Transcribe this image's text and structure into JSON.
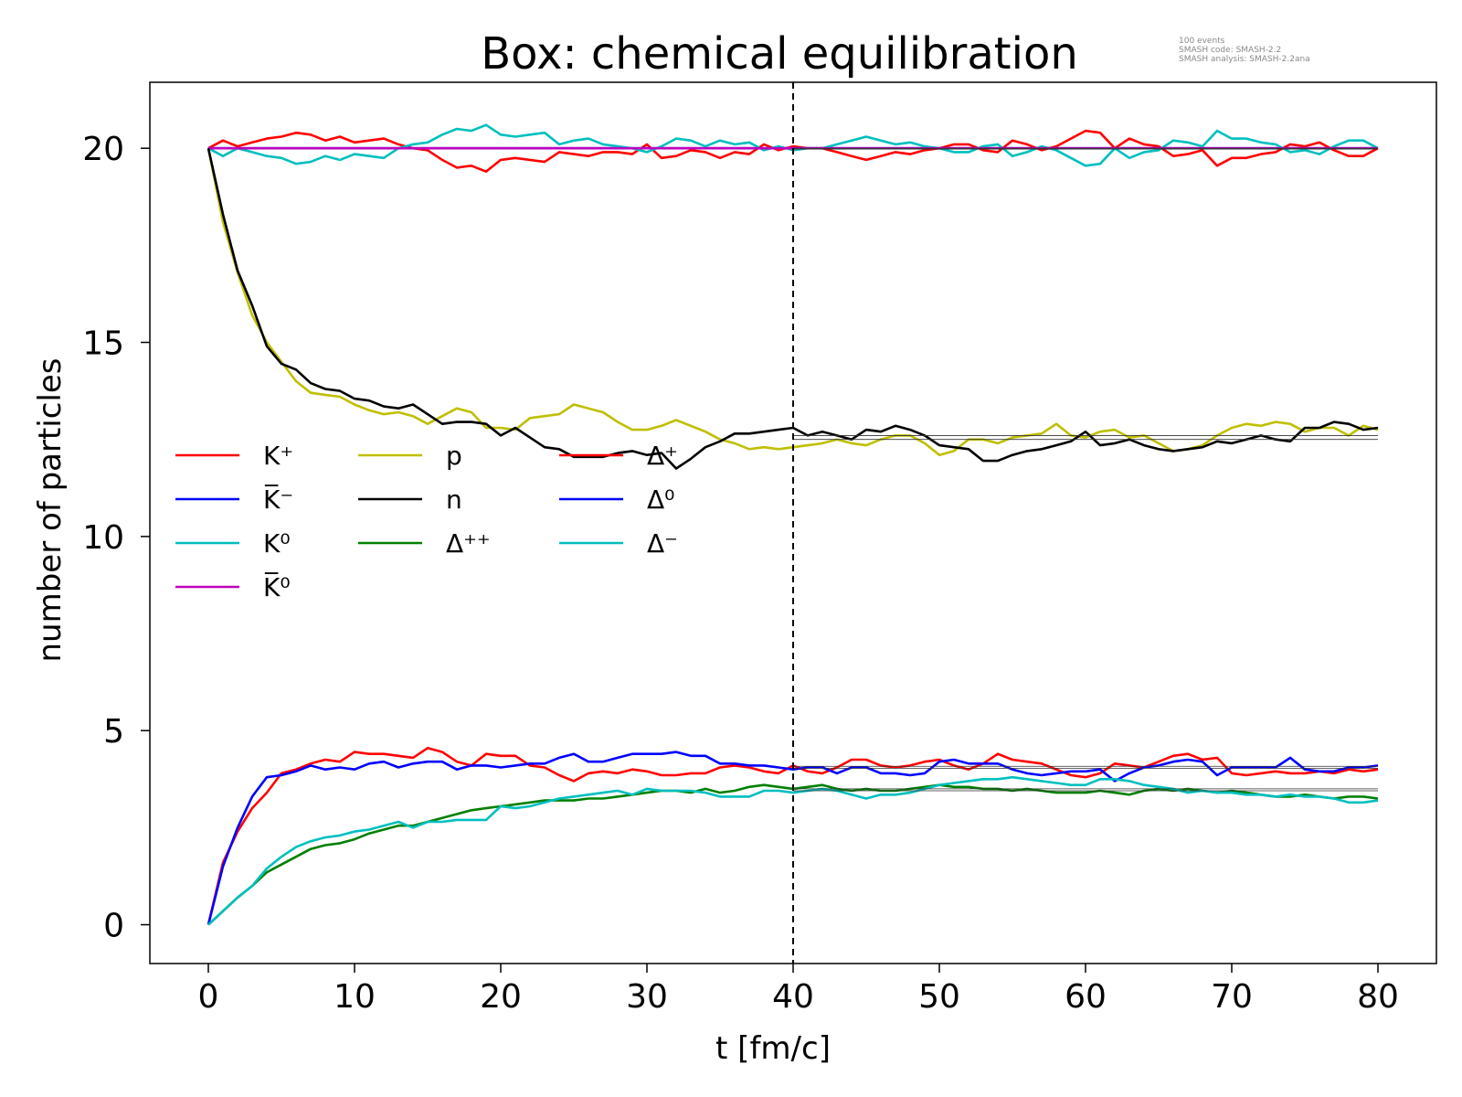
{
  "chart_data": {
    "type": "line",
    "title": "Box: chemical equilibration",
    "xlabel": "t [fm/c]",
    "ylabel": "number of particles",
    "xlim": [
      -4,
      84
    ],
    "ylim": [
      -1,
      21.7
    ],
    "xticks": [
      0,
      10,
      20,
      30,
      40,
      50,
      60,
      70,
      80
    ],
    "yticks": [
      0,
      5,
      10,
      15,
      20
    ],
    "grid": false,
    "legend_position": "center-left",
    "info": [
      "100 events",
      "SMASH code:      SMASH-2.2",
      "SMASH analysis: SMASH-2.2ana"
    ],
    "vline": {
      "x": 40,
      "style": "dashed",
      "color": "#000000"
    },
    "x_start": 0,
    "x_step": 1,
    "series": [
      {
        "name": "K⁺",
        "color": "#ff0000",
        "values": [
          20,
          20.2,
          20.05,
          20.15,
          20.25,
          20.3,
          20.4,
          20.35,
          20.2,
          20.3,
          20.15,
          20.2,
          20.25,
          20.1,
          20.0,
          19.95,
          19.7,
          19.5,
          19.55,
          19.4,
          19.7,
          19.75,
          19.7,
          19.65,
          19.9,
          19.85,
          19.8,
          19.9,
          19.9,
          19.85,
          20.1,
          19.75,
          19.8,
          19.95,
          19.9,
          19.75,
          19.9,
          19.85,
          20.1,
          19.95,
          20.05,
          20.0,
          20.0,
          19.9,
          19.8,
          19.7,
          19.8,
          19.9,
          19.85,
          19.95,
          20.0,
          20.1,
          20.1,
          19.95,
          19.9,
          20.2,
          20.1,
          19.95,
          20.05,
          20.25,
          20.45,
          20.4,
          20.0,
          20.25,
          20.1,
          20.05,
          19.8,
          19.85,
          19.95,
          19.55,
          19.75,
          19.75,
          19.85,
          19.9,
          20.1,
          20.05,
          20.15,
          19.95,
          19.8,
          19.8,
          20.0
        ]
      },
      {
        "name": "K̅⁻",
        "color": "#0000ff",
        "values": [
          20,
          20,
          20,
          20,
          20,
          20,
          20,
          20,
          20,
          20,
          20,
          20,
          20,
          20,
          20,
          20,
          20,
          20,
          20,
          20,
          20,
          20,
          20,
          20,
          20,
          20,
          20,
          20,
          20,
          20,
          20,
          20,
          20,
          20,
          20,
          20,
          20,
          20,
          20,
          20,
          20,
          20,
          20,
          20,
          20,
          20,
          20,
          20,
          20,
          20,
          20,
          20,
          20,
          20,
          20,
          20,
          20,
          20,
          20,
          20,
          20,
          20,
          20,
          20,
          20,
          20,
          20,
          20,
          20,
          20,
          20,
          20,
          20,
          20,
          20,
          20,
          20,
          20,
          20,
          20,
          20
        ]
      },
      {
        "name": "K⁰",
        "color": "#00bfbf",
        "values": [
          20,
          19.8,
          20.0,
          19.9,
          19.8,
          19.75,
          19.6,
          19.65,
          19.8,
          19.7,
          19.85,
          19.8,
          19.75,
          20.0,
          20.1,
          20.15,
          20.35,
          20.5,
          20.45,
          20.6,
          20.35,
          20.3,
          20.35,
          20.4,
          20.1,
          20.2,
          20.25,
          20.1,
          20.05,
          20.0,
          19.9,
          20.05,
          20.25,
          20.2,
          20.05,
          20.2,
          20.1,
          20.15,
          19.95,
          20.05,
          19.95,
          20.0,
          20.0,
          20.1,
          20.2,
          20.3,
          20.2,
          20.1,
          20.15,
          20.05,
          20.0,
          19.9,
          19.9,
          20.05,
          20.1,
          19.8,
          19.9,
          20.05,
          19.95,
          19.75,
          19.55,
          19.6,
          20.0,
          19.75,
          19.9,
          19.95,
          20.2,
          20.15,
          20.05,
          20.45,
          20.25,
          20.25,
          20.15,
          20.1,
          19.9,
          19.95,
          19.85,
          20.05,
          20.2,
          20.2,
          20.0
        ]
      },
      {
        "name": "K̅⁰",
        "color": "#bf00bf",
        "values": [
          20,
          20,
          20,
          20,
          20,
          20,
          20,
          20,
          20,
          20,
          20,
          20,
          20,
          20,
          20,
          20,
          20,
          20,
          20,
          20,
          20,
          20,
          20,
          20,
          20,
          20,
          20,
          20,
          20,
          20,
          20,
          20,
          20,
          20,
          20,
          20,
          20,
          20,
          20,
          20,
          20,
          20,
          20,
          20,
          20,
          20,
          20,
          20,
          20,
          20,
          20,
          20,
          20,
          20,
          20,
          20,
          20,
          20,
          20,
          20,
          20,
          20,
          20,
          20,
          20,
          20,
          20,
          20,
          20,
          20,
          20,
          20,
          20,
          20,
          20,
          20,
          20,
          20,
          20,
          20,
          20
        ]
      },
      {
        "name": "p",
        "color": "#bfbf00",
        "values": [
          20,
          18.1,
          16.8,
          15.7,
          15.0,
          14.5,
          14.0,
          13.7,
          13.65,
          13.6,
          13.4,
          13.25,
          13.15,
          13.2,
          13.1,
          12.9,
          13.1,
          13.3,
          13.2,
          12.8,
          12.8,
          12.75,
          13.05,
          13.1,
          13.15,
          13.4,
          13.3,
          13.2,
          12.95,
          12.75,
          12.75,
          12.85,
          13.0,
          12.85,
          12.7,
          12.5,
          12.4,
          12.25,
          12.3,
          12.25,
          12.3,
          12.35,
          12.4,
          12.5,
          12.4,
          12.35,
          12.5,
          12.6,
          12.6,
          12.4,
          12.1,
          12.2,
          12.5,
          12.5,
          12.4,
          12.55,
          12.6,
          12.65,
          12.9,
          12.6,
          12.55,
          12.7,
          12.75,
          12.55,
          12.6,
          12.4,
          12.2,
          12.25,
          12.35,
          12.6,
          12.8,
          12.9,
          12.85,
          12.95,
          12.9,
          12.7,
          12.8,
          12.8,
          12.6,
          12.85,
          12.75
        ]
      },
      {
        "name": "n",
        "color": "#000000",
        "values": [
          20,
          18.3,
          16.85,
          15.95,
          14.9,
          14.45,
          14.3,
          13.95,
          13.8,
          13.75,
          13.55,
          13.5,
          13.35,
          13.3,
          13.4,
          13.15,
          12.9,
          12.95,
          12.95,
          12.9,
          12.6,
          12.8,
          12.55,
          12.3,
          12.25,
          12.05,
          12.05,
          12.05,
          12.15,
          12.2,
          12.1,
          12.15,
          11.75,
          12.0,
          12.3,
          12.45,
          12.65,
          12.65,
          12.7,
          12.75,
          12.8,
          12.6,
          12.7,
          12.6,
          12.5,
          12.75,
          12.7,
          12.85,
          12.75,
          12.6,
          12.35,
          12.3,
          12.25,
          11.95,
          11.95,
          12.1,
          12.2,
          12.25,
          12.35,
          12.45,
          12.7,
          12.35,
          12.4,
          12.5,
          12.35,
          12.25,
          12.2,
          12.25,
          12.3,
          12.45,
          12.4,
          12.5,
          12.6,
          12.5,
          12.45,
          12.8,
          12.8,
          12.95,
          12.9,
          12.75,
          12.8
        ]
      },
      {
        "name": "Δ⁺⁺",
        "color": "#008000",
        "values": [
          0,
          0.35,
          0.7,
          1.0,
          1.35,
          1.55,
          1.75,
          1.95,
          2.05,
          2.1,
          2.2,
          2.35,
          2.45,
          2.55,
          2.55,
          2.65,
          2.75,
          2.85,
          2.95,
          3.0,
          3.05,
          3.1,
          3.15,
          3.2,
          3.2,
          3.2,
          3.25,
          3.25,
          3.3,
          3.35,
          3.4,
          3.45,
          3.45,
          3.4,
          3.5,
          3.4,
          3.45,
          3.55,
          3.6,
          3.55,
          3.5,
          3.55,
          3.6,
          3.5,
          3.45,
          3.5,
          3.45,
          3.45,
          3.5,
          3.55,
          3.6,
          3.55,
          3.55,
          3.5,
          3.5,
          3.45,
          3.5,
          3.45,
          3.4,
          3.4,
          3.4,
          3.45,
          3.4,
          3.35,
          3.45,
          3.5,
          3.45,
          3.5,
          3.45,
          3.4,
          3.45,
          3.4,
          3.35,
          3.3,
          3.3,
          3.35,
          3.3,
          3.25,
          3.3,
          3.3,
          3.25
        ]
      },
      {
        "name": "Δ⁺",
        "color": "#ff0000",
        "values": [
          0,
          1.6,
          2.4,
          3.0,
          3.4,
          3.9,
          4.0,
          4.15,
          4.25,
          4.2,
          4.45,
          4.4,
          4.4,
          4.35,
          4.3,
          4.55,
          4.45,
          4.2,
          4.1,
          4.4,
          4.35,
          4.35,
          4.1,
          4.05,
          3.85,
          3.7,
          3.9,
          3.95,
          3.9,
          4.0,
          3.95,
          3.85,
          3.85,
          3.9,
          3.9,
          4.05,
          4.1,
          4.05,
          3.95,
          3.9,
          4.1,
          3.95,
          3.9,
          4.05,
          4.25,
          4.25,
          4.1,
          4.05,
          4.1,
          4.2,
          4.25,
          4.1,
          4.0,
          4.15,
          4.4,
          4.25,
          4.2,
          4.15,
          4.0,
          3.85,
          3.8,
          3.9,
          4.15,
          4.1,
          4.05,
          4.2,
          4.35,
          4.4,
          4.25,
          4.3,
          3.9,
          3.85,
          3.9,
          3.95,
          3.9,
          3.9,
          3.95,
          3.9,
          4.0,
          3.95,
          4.0
        ]
      },
      {
        "name": "Δ⁰",
        "color": "#0000ff",
        "values": [
          0,
          1.5,
          2.5,
          3.3,
          3.8,
          3.85,
          3.95,
          4.1,
          4.0,
          4.05,
          4.0,
          4.15,
          4.2,
          4.05,
          4.15,
          4.2,
          4.2,
          4.0,
          4.1,
          4.1,
          4.05,
          4.1,
          4.15,
          4.15,
          4.3,
          4.4,
          4.2,
          4.2,
          4.3,
          4.4,
          4.4,
          4.4,
          4.45,
          4.35,
          4.35,
          4.15,
          4.15,
          4.1,
          4.1,
          4.05,
          4.0,
          4.05,
          4.05,
          3.9,
          4.05,
          4.05,
          3.9,
          3.9,
          3.85,
          3.9,
          4.2,
          4.25,
          4.15,
          4.15,
          4.15,
          4.0,
          3.9,
          3.85,
          3.9,
          3.95,
          3.95,
          4.0,
          3.7,
          3.9,
          4.05,
          4.1,
          4.2,
          4.25,
          4.2,
          3.85,
          4.05,
          4.05,
          4.05,
          4.05,
          4.3,
          4.0,
          3.95,
          3.95,
          4.05,
          4.05,
          4.1
        ]
      },
      {
        "name": "Δ⁻",
        "color": "#00bfbf",
        "values": [
          0,
          0.35,
          0.7,
          1.0,
          1.45,
          1.75,
          2.0,
          2.15,
          2.25,
          2.3,
          2.4,
          2.45,
          2.55,
          2.65,
          2.5,
          2.65,
          2.65,
          2.7,
          2.7,
          2.7,
          3.05,
          3.0,
          3.05,
          3.15,
          3.25,
          3.3,
          3.35,
          3.4,
          3.45,
          3.35,
          3.5,
          3.45,
          3.45,
          3.45,
          3.4,
          3.3,
          3.3,
          3.3,
          3.45,
          3.45,
          3.4,
          3.45,
          3.5,
          3.45,
          3.35,
          3.25,
          3.35,
          3.35,
          3.4,
          3.5,
          3.6,
          3.65,
          3.7,
          3.75,
          3.75,
          3.8,
          3.75,
          3.7,
          3.65,
          3.6,
          3.6,
          3.75,
          3.75,
          3.7,
          3.6,
          3.55,
          3.5,
          3.4,
          3.45,
          3.4,
          3.4,
          3.35,
          3.35,
          3.3,
          3.35,
          3.3,
          3.3,
          3.25,
          3.15,
          3.15,
          3.2
        ]
      }
    ],
    "equilibrium_lines": [
      {
        "x_start": 40,
        "x_end": 80,
        "values": [
          20.0,
          19.98,
          12.6,
          12.5,
          4.08,
          4.03,
          3.5,
          3.45
        ]
      }
    ]
  }
}
